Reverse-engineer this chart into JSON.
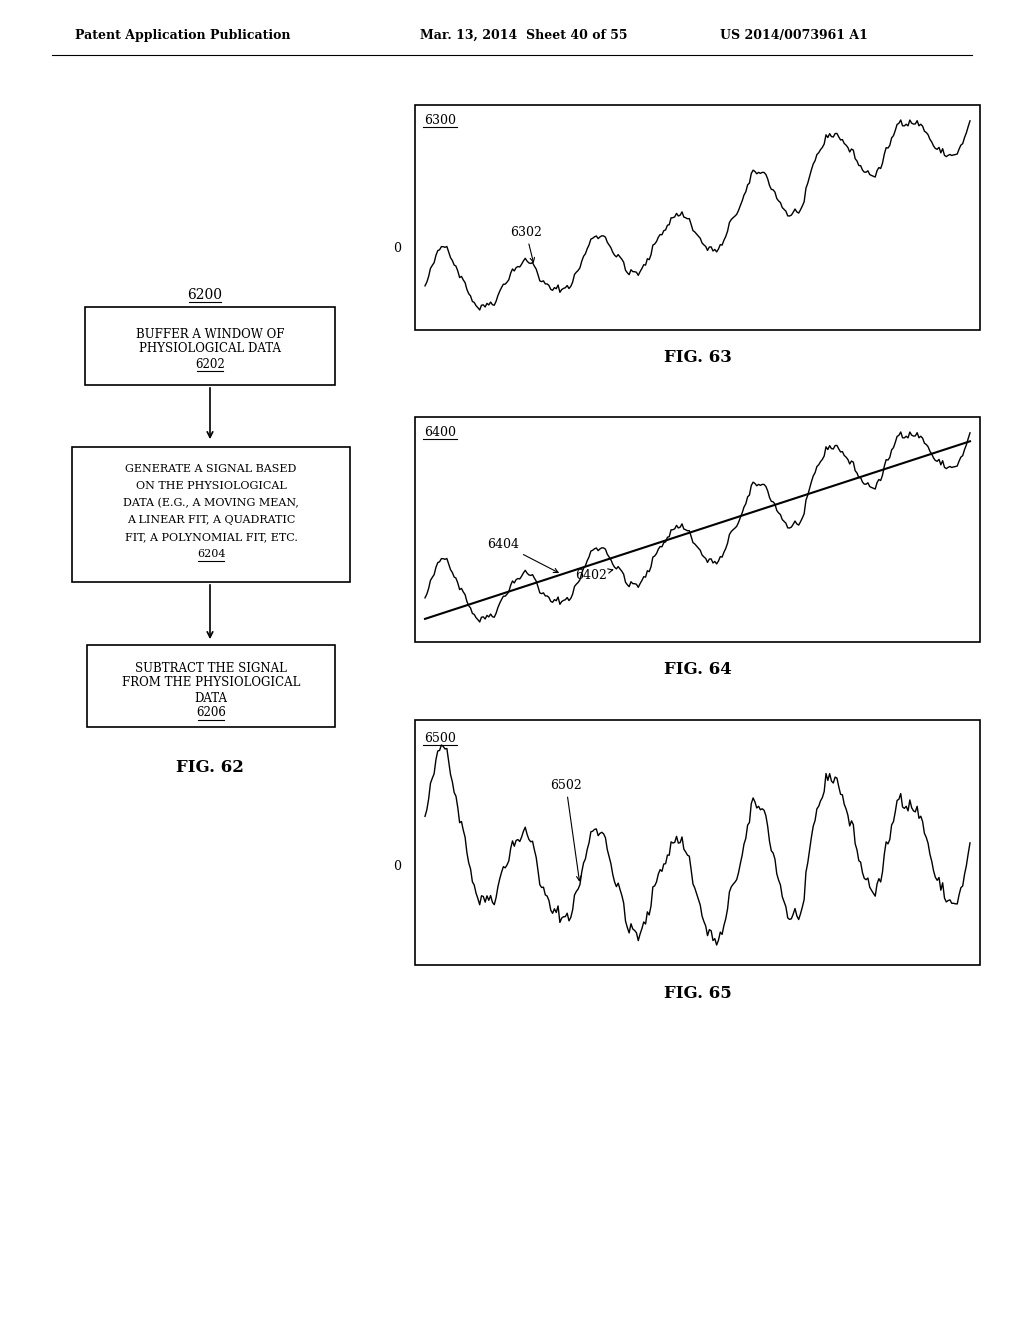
{
  "bg_color": "#ffffff",
  "header_left": "Patent Application Publication",
  "header_mid": "Mar. 13, 2014  Sheet 40 of 55",
  "header_right": "US 2014/0073961 A1",
  "flowchart_label": "6200",
  "box1_lines": [
    "BUFFER A WINDOW OF",
    "PHYSIOLOGICAL DATA",
    "6202"
  ],
  "box1_ref": "6202",
  "box2_lines": [
    "GENERATE A SIGNAL BASED",
    "ON THE PHYSIOLOGICAL",
    "DATA (E.G., A MOVING MEAN,",
    "A LINEAR FIT, A QUADRATIC",
    "FIT, A POLYNOMIAL FIT, ETC.",
    "6204"
  ],
  "box2_ref": "6204",
  "box3_lines": [
    "SUBTRACT THE SIGNAL",
    "FROM THE PHYSIOLOGICAL",
    "DATA",
    "6206"
  ],
  "box3_ref": "6206",
  "fig62_label": "FIG. 62",
  "fig63_label_num": "6300",
  "fig63_ann": "6302",
  "fig63_label": "FIG. 63",
  "fig64_label_num": "6400",
  "fig64_ann1": "6404",
  "fig64_ann2": "6402",
  "fig64_label": "FIG. 64",
  "fig65_label_num": "6500",
  "fig65_ann": "6502",
  "fig65_label": "FIG. 65"
}
